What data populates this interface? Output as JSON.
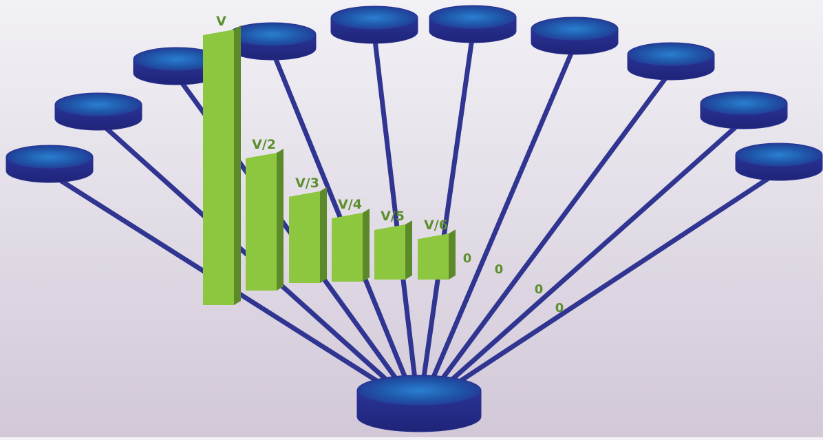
{
  "diagram": {
    "hub": {
      "name": "central-disk"
    },
    "peers": [
      {
        "name": "peer-disk-1"
      },
      {
        "name": "peer-disk-2"
      },
      {
        "name": "peer-disk-3"
      },
      {
        "name": "peer-disk-4"
      },
      {
        "name": "peer-disk-5"
      },
      {
        "name": "peer-disk-6"
      },
      {
        "name": "peer-disk-7"
      },
      {
        "name": "peer-disk-8"
      },
      {
        "name": "peer-disk-9"
      },
      {
        "name": "peer-disk-10"
      }
    ],
    "colors": {
      "disk_top": "#1d5aa8",
      "disk_edge": "#27308f",
      "link": "#2f3590",
      "bar_face": "#8dc63f",
      "bar_side": "#5c8a2a",
      "label": "#5d8f2e"
    }
  },
  "chart_data": {
    "type": "bar",
    "categories": [
      "V",
      "V/2",
      "V/3",
      "V/4",
      "V/5",
      "V/6",
      "0",
      "0",
      "0",
      "0"
    ],
    "values": [
      1,
      0.5,
      0.333,
      0.25,
      0.2,
      0.167,
      0,
      0,
      0,
      0
    ]
  }
}
